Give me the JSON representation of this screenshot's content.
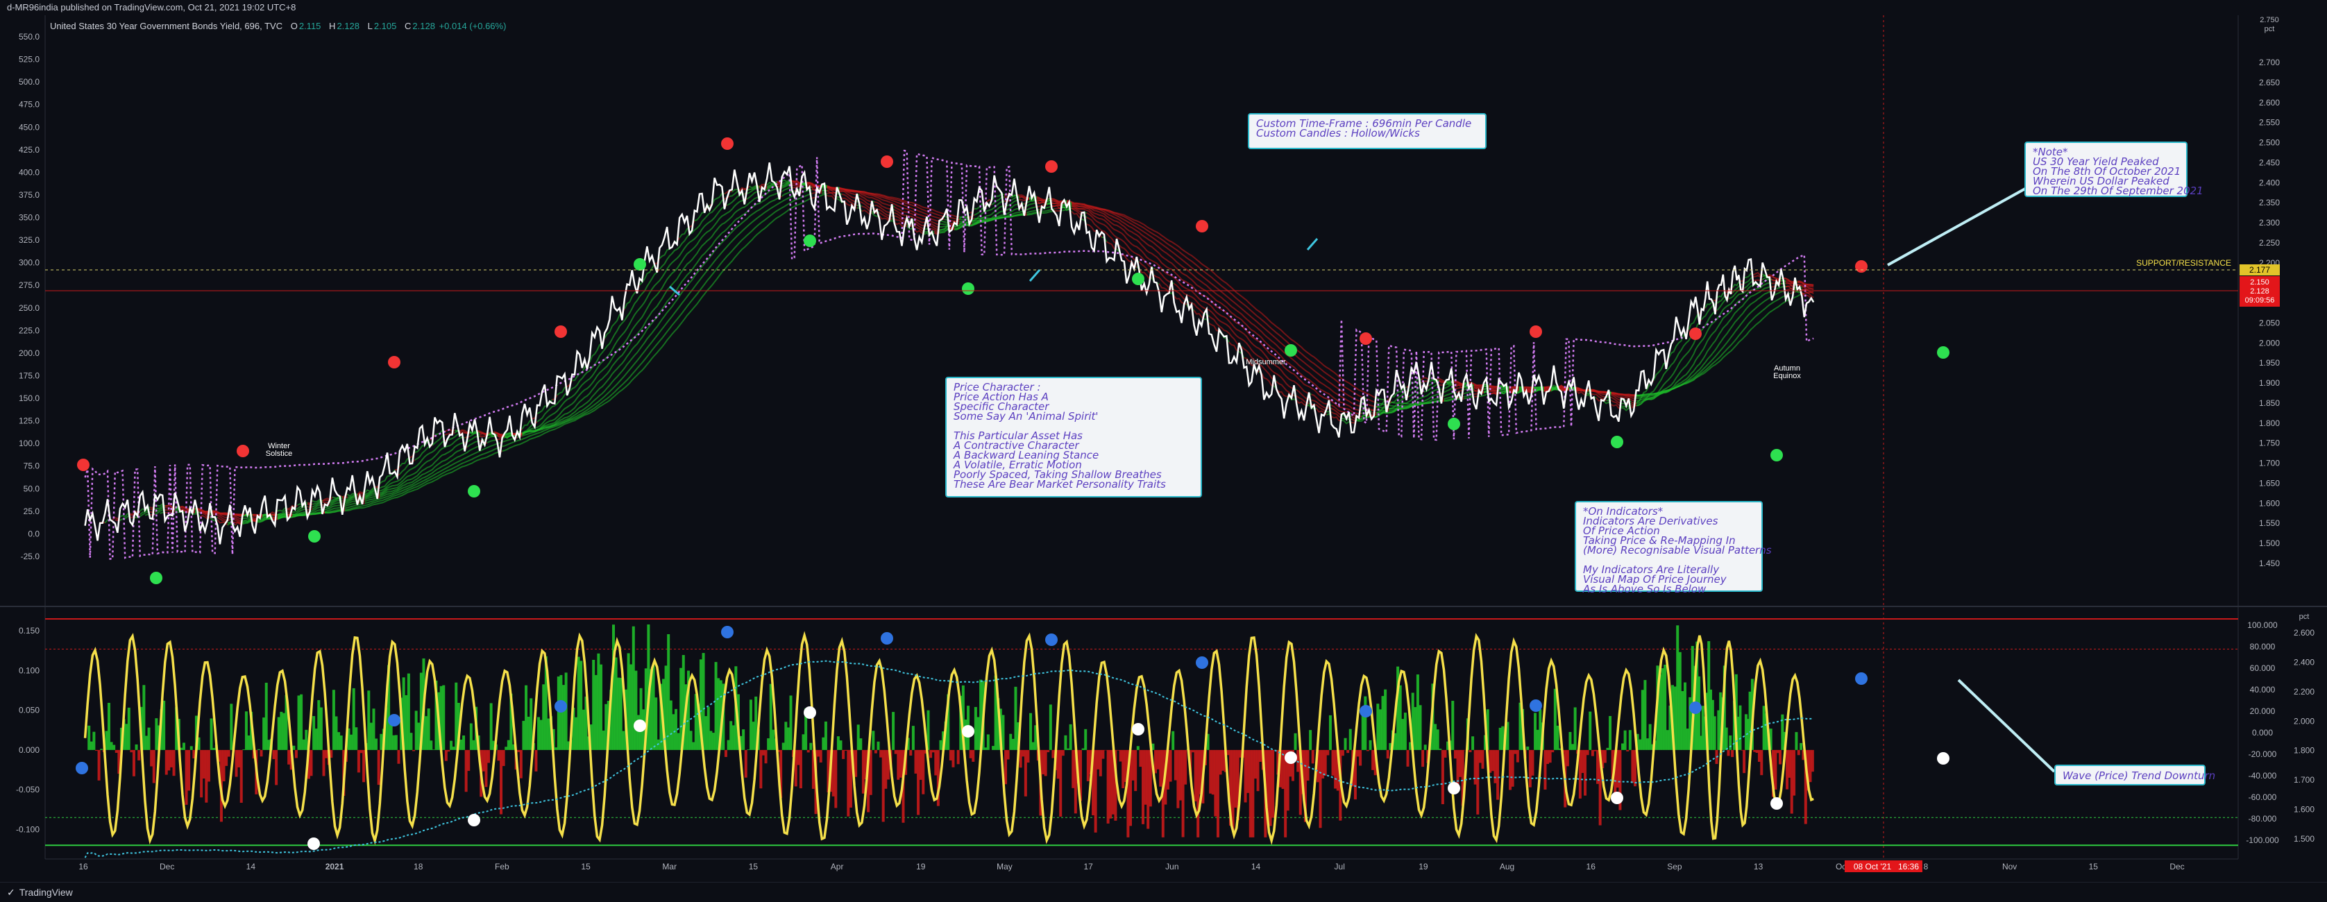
{
  "header": {
    "publisher": "d-MR96india published on TradingView.com, Oct 21, 2021 19:02 UTC+8"
  },
  "legend": {
    "symbol": "United States 30 Year Government Bonds Yield, 696, TVC",
    "o_label": "O",
    "o": "2.115",
    "h_label": "H",
    "h": "2.128",
    "l_label": "L",
    "l": "2.105",
    "c_label": "C",
    "c": "2.128",
    "change": "+0.014 (+0.66%)"
  },
  "notes": {
    "timeframe": [
      "Custom Time-Frame : 696min Per Candle",
      "Custom Candles : Hollow/Wicks"
    ],
    "top_right": [
      "*Note*",
      "US 30 Year Yield Peaked",
      "On The 8th Of October 2021",
      "Wherein US Dollar Peaked",
      "On The 29th Of September 2021"
    ],
    "price_character": [
      "Price Character :",
      "Price Action Has A",
      "Specific Character",
      "Some Say An 'Animal Spirit'",
      "",
      "This Particular Asset Has",
      "A Contractive Character",
      "A Backward Leaning Stance",
      "A Volatile, Erratic Motion",
      "Poorly Spaced, Taking Shallow Breathes",
      "These Are Bear Market Personality Traits"
    ],
    "indicators": [
      "*On Indicators*",
      "Indicators Are Derivatives",
      "Of Price Action",
      "Taking Price & Re-Mapping In",
      "(More) Recognisable Visual Patterns",
      "",
      "My Indicators Are Literally",
      "Visual Map Of Price Journey",
      "As Is Above So Is Below"
    ],
    "wave": [
      "Wave (Price) Trend Downturn"
    ]
  },
  "labels": {
    "winter": "Winter\nSolstice",
    "midsummer": "Midsummer",
    "autumn": "Autumn\nEquinox",
    "support": "SUPPORT/RESISTANCE"
  },
  "price_tags": {
    "support_value": "2.177",
    "last_value": "2.128",
    "high_value": "2.150",
    "countdown": "09:09:56",
    "date_tag": "08 Oct '21",
    "time_tag": "16:36"
  },
  "axes": {
    "left_upper_ticks": [
      "550.0",
      "525.0",
      "500.0",
      "475.0",
      "450.0",
      "425.0",
      "400.0",
      "375.0",
      "350.0",
      "325.0",
      "300.0",
      "275.0",
      "250.0",
      "225.0",
      "200.0",
      "175.0",
      "150.0",
      "125.0",
      "100.0",
      "75.0",
      "50.0",
      "25.0",
      "0.0",
      "-25.0"
    ],
    "right_upper_ticks": [
      "2.700",
      "2.650",
      "2.600",
      "2.550",
      "2.500",
      "2.450",
      "2.400",
      "2.350",
      "2.300",
      "2.250",
      "2.200",
      "2.150",
      "2.100",
      "2.050",
      "2.000",
      "1.950",
      "1.900",
      "1.850",
      "1.800",
      "1.750",
      "1.700",
      "1.650",
      "1.600",
      "1.550",
      "1.500",
      "1.450"
    ],
    "right_upper_unit": "pct",
    "right_top_value": "2.750",
    "left_lower_ticks": [
      "0.150",
      "0.100",
      "0.050",
      "0.000",
      "-0.050",
      "-0.100"
    ],
    "right_lower_ticks_a": [
      "100.000",
      "80.000",
      "60.000",
      "40.000",
      "20.000",
      "0.000",
      "-20.000",
      "-40.000",
      "-60.000",
      "-80.000",
      "-100.000"
    ],
    "right_lower_ticks_b": [
      "2.600",
      "2.400",
      "2.200",
      "2.000",
      "1.800",
      "1.700",
      "1.600",
      "1.500"
    ],
    "right_lower_unit": "pct",
    "x_ticks": [
      "16",
      "Dec",
      "14",
      "2021",
      "18",
      "Feb",
      "15",
      "Mar",
      "15",
      "Apr",
      "19",
      "May",
      "17",
      "Jun",
      "14",
      "Jul",
      "19",
      "Aug",
      "16",
      "Sep",
      "13",
      "Oct",
      "8",
      "Nov",
      "15",
      "Dec"
    ]
  },
  "footer": {
    "brand": "TradingView"
  },
  "colors": {
    "background": "#0c0e15",
    "up_ribbon": "#1fbf2a",
    "down_ribbon": "#c8191a",
    "envelope": "#d27cf2",
    "signal_yellow": "#f5e04a",
    "signal_cyan": "#3fc6e0",
    "dot_red": "#f23434",
    "dot_green": "#2ee050",
    "dot_blue": "#2f73e0",
    "note_border": "#2ab7c9"
  },
  "chart_data": {
    "type": "line",
    "title": "United States 30 Year Government Bonds Yield, 696, TVC",
    "x": [
      "2020-11-09",
      "2020-11-23",
      "2020-12-07",
      "2020-12-21",
      "2021-01-04",
      "2021-01-18",
      "2021-02-01",
      "2021-02-15",
      "2021-03-01",
      "2021-03-15",
      "2021-03-29",
      "2021-04-12",
      "2021-04-26",
      "2021-05-10",
      "2021-05-24",
      "2021-06-07",
      "2021-06-21",
      "2021-07-05",
      "2021-07-19",
      "2021-08-02",
      "2021-08-16",
      "2021-08-30",
      "2021-09-13",
      "2021-09-27",
      "2021-10-08",
      "2021-10-21"
    ],
    "series": [
      {
        "values": [
          1.62,
          1.67,
          1.62,
          1.67,
          1.7,
          1.84,
          1.82,
          1.97,
          2.21,
          2.38,
          2.41,
          2.34,
          2.28,
          2.38,
          2.34,
          2.2,
          2.08,
          1.92,
          1.85,
          1.96,
          1.92,
          1.94,
          1.88,
          2.11,
          2.2,
          2.13
        ]
      }
    ],
    "ylim_upper": [
      1.45,
      2.75
    ],
    "ylabel_upper": "pct",
    "oscillator_ylim": [
      -0.125,
      0.165
    ],
    "legend": "none",
    "grid": false
  }
}
